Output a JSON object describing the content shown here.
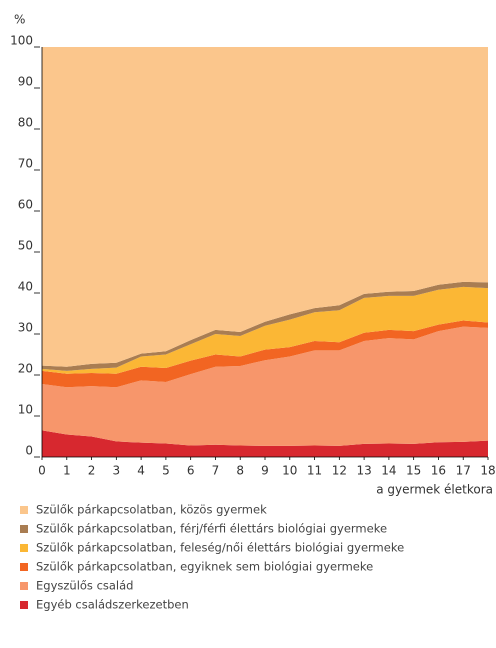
{
  "chart_data": {
    "type": "stacked_area",
    "y_label": "%",
    "x_label": "a gyermek életkora",
    "x": [
      0,
      1,
      2,
      3,
      4,
      5,
      6,
      7,
      8,
      9,
      10,
      11,
      12,
      13,
      14,
      15,
      16,
      17,
      18
    ],
    "xlim": [
      0,
      18
    ],
    "xticks": [
      0,
      1,
      2,
      3,
      4,
      5,
      6,
      7,
      8,
      9,
      10,
      11,
      12,
      13,
      14,
      15,
      16,
      17,
      18
    ],
    "ylim": [
      0,
      100
    ],
    "yticks": [
      0,
      10,
      20,
      30,
      40,
      50,
      60,
      70,
      80,
      90,
      100
    ],
    "series": [
      {
        "name": "Szülők párkapcsolatban, közös gyermek",
        "color": "#fbc68c",
        "values": [
          77.7,
          78,
          77.3,
          77,
          74.8,
          74.2,
          71.5,
          69,
          69.5,
          67,
          65.2,
          63.7,
          63,
          60.2,
          59.7,
          59.5,
          58,
          57.3,
          57.4
        ]
      },
      {
        "name": "Szülők párkapcsolatban, férj/férfi élettárs biológiai gyermeke",
        "color": "#a97d52",
        "values": [
          0.8,
          1,
          1.2,
          1.2,
          0.7,
          0.8,
          1,
          1,
          1,
          1,
          1.3,
          1,
          1.2,
          1,
          1,
          1.2,
          1.2,
          1.2,
          1.4
        ]
      },
      {
        "name": "Szülők párkapcsolatban, feleség/női élettárs biológiai gyermeke",
        "color": "#fbb735",
        "values": [
          0.5,
          0.7,
          1,
          1.5,
          2.5,
          3.3,
          4,
          5,
          5,
          5.8,
          6.7,
          7,
          7.8,
          8.5,
          8.3,
          8.6,
          8.5,
          8.2,
          8.4
        ]
      },
      {
        "name": "Szülők párkapcsolatban, egyiknek sem biológiai gyermeke",
        "color": "#f26522",
        "values": [
          3.2,
          3.3,
          3.2,
          3.3,
          3.3,
          3.4,
          3.3,
          3,
          2.3,
          2.6,
          2.3,
          2.3,
          2,
          2,
          2,
          2,
          1.6,
          1.5,
          1.3
        ]
      },
      {
        "name": "Egyszülős család",
        "color": "#f7966b",
        "values": [
          11.3,
          11.5,
          12.3,
          13.2,
          15.2,
          15,
          17.4,
          19,
          19.4,
          20.9,
          21.8,
          23.2,
          23.3,
          25.1,
          25.7,
          25.5,
          27.1,
          28.1,
          27.5
        ]
      },
      {
        "name": "Egyéb családszerkezetben",
        "color": "#d7282f",
        "values": [
          6.5,
          5.5,
          5,
          3.8,
          3.5,
          3.3,
          2.8,
          3,
          2.8,
          2.7,
          2.7,
          2.8,
          2.7,
          3.2,
          3.3,
          3.2,
          3.6,
          3.7,
          4
        ]
      }
    ]
  }
}
